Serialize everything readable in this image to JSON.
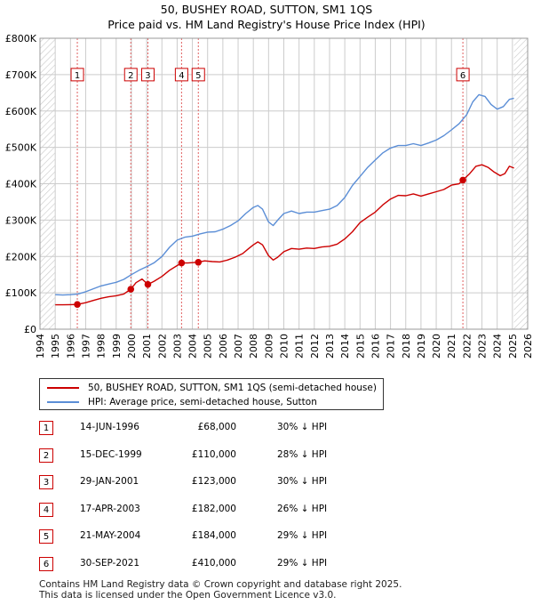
{
  "chart_data": {
    "type": "line",
    "title": "50, BUSHEY ROAD, SUTTON, SM1 1QS",
    "subtitle": "Price paid vs. HM Land Registry's House Price Index (HPI)",
    "y_ticks": [
      "£0",
      "£100K",
      "£200K",
      "£300K",
      "£400K",
      "£500K",
      "£600K",
      "£700K",
      "£800K"
    ],
    "y_tick_values": [
      0,
      100000,
      200000,
      300000,
      400000,
      500000,
      600000,
      700000,
      800000
    ],
    "ylim": [
      0,
      800000
    ],
    "xlim": [
      1994,
      2026
    ],
    "x_ticks": [
      "1994",
      "1995",
      "1996",
      "1997",
      "1998",
      "1999",
      "2000",
      "2001",
      "2002",
      "2003",
      "2004",
      "2005",
      "2006",
      "2007",
      "2008",
      "2009",
      "2010",
      "2011",
      "2012",
      "2013",
      "2014",
      "2015",
      "2016",
      "2017",
      "2018",
      "2019",
      "2020",
      "2021",
      "2022",
      "2023",
      "2024",
      "2025",
      "2026"
    ],
    "grid": true,
    "hatched_before": 1995.0,
    "hatched_after": 2025.1,
    "series": [
      {
        "name": "50, BUSHEY ROAD, SUTTON, SM1 1QS (semi-detached house)",
        "color": "#cc0000",
        "points": [
          [
            1995.0,
            67000
          ],
          [
            1995.5,
            67000
          ],
          [
            1996.0,
            67500
          ],
          [
            1996.45,
            68000
          ],
          [
            1997.0,
            73000
          ],
          [
            1997.5,
            79000
          ],
          [
            1998.0,
            85000
          ],
          [
            1998.5,
            89000
          ],
          [
            1999.0,
            92000
          ],
          [
            1999.5,
            97000
          ],
          [
            1999.96,
            110000
          ],
          [
            2000.3,
            128000
          ],
          [
            2000.7,
            138000
          ],
          [
            2001.08,
            123000
          ],
          [
            2001.5,
            132000
          ],
          [
            2002.0,
            145000
          ],
          [
            2002.5,
            162000
          ],
          [
            2003.0,
            175000
          ],
          [
            2003.29,
            182000
          ],
          [
            2003.7,
            182000
          ],
          [
            2004.0,
            183000
          ],
          [
            2004.39,
            184000
          ],
          [
            2004.8,
            188000
          ],
          [
            2005.3,
            186000
          ],
          [
            2005.8,
            185000
          ],
          [
            2006.3,
            190000
          ],
          [
            2006.8,
            198000
          ],
          [
            2007.3,
            208000
          ],
          [
            2007.7,
            222000
          ],
          [
            2008.0,
            232000
          ],
          [
            2008.3,
            240000
          ],
          [
            2008.6,
            232000
          ],
          [
            2009.0,
            202000
          ],
          [
            2009.3,
            190000
          ],
          [
            2009.6,
            198000
          ],
          [
            2010.0,
            213000
          ],
          [
            2010.5,
            222000
          ],
          [
            2011.0,
            220000
          ],
          [
            2011.5,
            223000
          ],
          [
            2012.0,
            222000
          ],
          [
            2012.5,
            226000
          ],
          [
            2013.0,
            228000
          ],
          [
            2013.5,
            234000
          ],
          [
            2014.0,
            248000
          ],
          [
            2014.5,
            268000
          ],
          [
            2015.0,
            293000
          ],
          [
            2015.5,
            308000
          ],
          [
            2016.0,
            322000
          ],
          [
            2016.5,
            342000
          ],
          [
            2017.0,
            358000
          ],
          [
            2017.5,
            368000
          ],
          [
            2018.0,
            367000
          ],
          [
            2018.5,
            372000
          ],
          [
            2019.0,
            366000
          ],
          [
            2019.5,
            372000
          ],
          [
            2020.0,
            378000
          ],
          [
            2020.5,
            384000
          ],
          [
            2021.0,
            396000
          ],
          [
            2021.5,
            400000
          ],
          [
            2021.75,
            410000
          ],
          [
            2022.2,
            428000
          ],
          [
            2022.6,
            448000
          ],
          [
            2023.0,
            452000
          ],
          [
            2023.4,
            445000
          ],
          [
            2023.8,
            432000
          ],
          [
            2024.2,
            422000
          ],
          [
            2024.5,
            428000
          ],
          [
            2024.8,
            448000
          ],
          [
            2025.1,
            443000
          ]
        ]
      },
      {
        "name": "HPI: Average price, semi-detached house, Sutton",
        "color": "#5b8ed6",
        "points": [
          [
            1995.0,
            95000
          ],
          [
            1995.5,
            94000
          ],
          [
            1996.0,
            95000
          ],
          [
            1996.5,
            97000
          ],
          [
            1997.0,
            103000
          ],
          [
            1997.5,
            111000
          ],
          [
            1998.0,
            119000
          ],
          [
            1998.5,
            124000
          ],
          [
            1999.0,
            129000
          ],
          [
            1999.5,
            137000
          ],
          [
            2000.0,
            150000
          ],
          [
            2000.5,
            162000
          ],
          [
            2001.0,
            172000
          ],
          [
            2001.5,
            183000
          ],
          [
            2002.0,
            200000
          ],
          [
            2002.5,
            225000
          ],
          [
            2003.0,
            245000
          ],
          [
            2003.5,
            253000
          ],
          [
            2004.0,
            256000
          ],
          [
            2004.5,
            262000
          ],
          [
            2005.0,
            267000
          ],
          [
            2005.5,
            268000
          ],
          [
            2006.0,
            275000
          ],
          [
            2006.5,
            285000
          ],
          [
            2007.0,
            298000
          ],
          [
            2007.5,
            318000
          ],
          [
            2008.0,
            335000
          ],
          [
            2008.3,
            340000
          ],
          [
            2008.6,
            330000
          ],
          [
            2009.0,
            295000
          ],
          [
            2009.3,
            285000
          ],
          [
            2009.6,
            300000
          ],
          [
            2010.0,
            318000
          ],
          [
            2010.5,
            325000
          ],
          [
            2011.0,
            318000
          ],
          [
            2011.5,
            322000
          ],
          [
            2012.0,
            322000
          ],
          [
            2012.5,
            326000
          ],
          [
            2013.0,
            330000
          ],
          [
            2013.5,
            340000
          ],
          [
            2014.0,
            362000
          ],
          [
            2014.5,
            395000
          ],
          [
            2015.0,
            420000
          ],
          [
            2015.5,
            445000
          ],
          [
            2016.0,
            465000
          ],
          [
            2016.5,
            485000
          ],
          [
            2017.0,
            498000
          ],
          [
            2017.5,
            505000
          ],
          [
            2018.0,
            505000
          ],
          [
            2018.5,
            510000
          ],
          [
            2019.0,
            505000
          ],
          [
            2019.5,
            512000
          ],
          [
            2020.0,
            520000
          ],
          [
            2020.5,
            532000
          ],
          [
            2021.0,
            548000
          ],
          [
            2021.5,
            565000
          ],
          [
            2022.0,
            590000
          ],
          [
            2022.4,
            625000
          ],
          [
            2022.8,
            645000
          ],
          [
            2023.2,
            640000
          ],
          [
            2023.6,
            618000
          ],
          [
            2024.0,
            605000
          ],
          [
            2024.4,
            612000
          ],
          [
            2024.8,
            632000
          ],
          [
            2025.1,
            635000
          ]
        ]
      }
    ],
    "sales": [
      {
        "label": "1",
        "year": 1996.45,
        "price": 68000
      },
      {
        "label": "2",
        "year": 1999.96,
        "price": 110000
      },
      {
        "label": "3",
        "year": 2001.08,
        "price": 123000
      },
      {
        "label": "4",
        "year": 2003.29,
        "price": 182000
      },
      {
        "label": "5",
        "year": 2004.39,
        "price": 184000
      },
      {
        "label": "6",
        "year": 2021.75,
        "price": 410000
      }
    ],
    "marker_labels_y": 700000
  },
  "legend": {
    "property": "50, BUSHEY ROAD, SUTTON, SM1 1QS (semi-detached house)",
    "hpi": "HPI: Average price, semi-detached house, Sutton"
  },
  "sales_table": [
    {
      "num": "1",
      "date": "14-JUN-1996",
      "price": "£68,000",
      "hpi": "30% ↓ HPI"
    },
    {
      "num": "2",
      "date": "15-DEC-1999",
      "price": "£110,000",
      "hpi": "28% ↓ HPI"
    },
    {
      "num": "3",
      "date": "29-JAN-2001",
      "price": "£123,000",
      "hpi": "30% ↓ HPI"
    },
    {
      "num": "4",
      "date": "17-APR-2003",
      "price": "£182,000",
      "hpi": "26% ↓ HPI"
    },
    {
      "num": "5",
      "date": "21-MAY-2004",
      "price": "£184,000",
      "hpi": "29% ↓ HPI"
    },
    {
      "num": "6",
      "date": "30-SEP-2021",
      "price": "£410,000",
      "hpi": "29% ↓ HPI"
    }
  ],
  "footer": {
    "line1": "Contains HM Land Registry data © Crown copyright and database right 2025.",
    "line2": "This data is licensed under the Open Government Licence v3.0."
  },
  "colors": {
    "property_line": "#cc0000",
    "hpi_line": "#5b8ed6",
    "grid": "#cccccc",
    "marker_border": "#cc0000"
  }
}
